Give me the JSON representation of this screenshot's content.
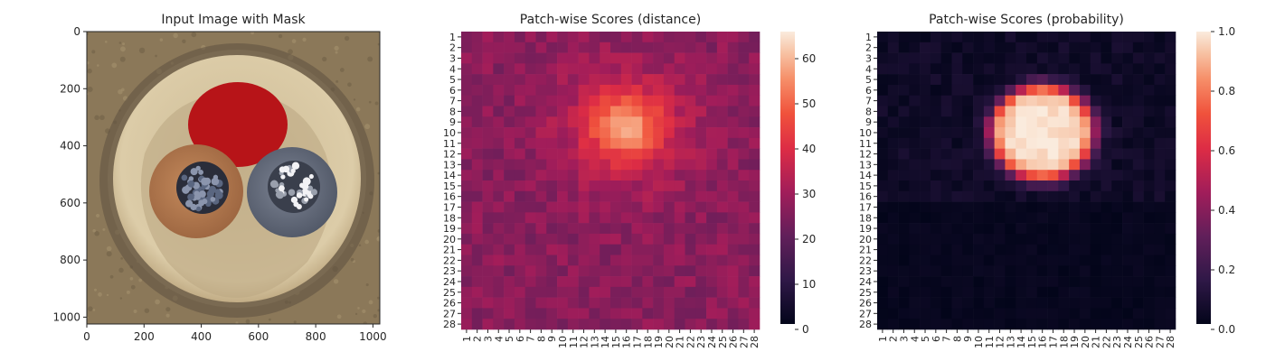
{
  "figure": {
    "panels": [
      {
        "title": "Input Image with Mask"
      },
      {
        "title": "Patch-wise Scores (distance)"
      },
      {
        "title": "Patch-wise Scores (probability)"
      }
    ]
  },
  "chart_data": [
    {
      "type": "image",
      "title": "Input Image with Mask",
      "xlim": [
        0,
        1024
      ],
      "ylim": [
        1024,
        0
      ],
      "x_ticks": [
        "0",
        "200",
        "400",
        "600",
        "800",
        "1000"
      ],
      "y_ticks": [
        "0",
        "200",
        "400",
        "600",
        "800",
        "1000"
      ],
      "colors": {
        "background": "#8d7a5d",
        "outer_rim": "#6f5f49",
        "disc": "#d8c8a3",
        "disc_inner": "#c9b68f",
        "mask": "#b71418",
        "copper": "#b77a4e",
        "steel": "#6c7382"
      }
    },
    {
      "type": "heatmap",
      "title": "Patch-wise Scores (distance)",
      "grid": [
        28,
        28
      ],
      "x_ticks": [
        "1",
        "2",
        "3",
        "4",
        "5",
        "6",
        "7",
        "8",
        "9",
        "10",
        "11",
        "12",
        "13",
        "14",
        "15",
        "16",
        "17",
        "18",
        "19",
        "20",
        "21",
        "22",
        "23",
        "24",
        "25",
        "26",
        "27",
        "28"
      ],
      "y_ticks": [
        "1",
        "2",
        "3",
        "4",
        "5",
        "6",
        "7",
        "8",
        "9",
        "10",
        "11",
        "12",
        "13",
        "14",
        "15",
        "16",
        "17",
        "18",
        "19",
        "20",
        "21",
        "22",
        "23",
        "24",
        "25",
        "26",
        "27",
        "28"
      ],
      "colorbar": {
        "min": 0,
        "max": 66,
        "ticks": [
          "0",
          "10",
          "20",
          "30",
          "40",
          "50",
          "60"
        ],
        "tick_values": [
          0,
          10,
          20,
          30,
          40,
          50,
          60
        ]
      },
      "blob": {
        "center_col": 16,
        "center_row": 9.5,
        "peak": 65,
        "base": 26,
        "halo": 40
      },
      "colormap": "rocket"
    },
    {
      "type": "heatmap",
      "title": "Patch-wise Scores (probability)",
      "grid": [
        28,
        28
      ],
      "x_ticks": [
        "1",
        "2",
        "3",
        "4",
        "5",
        "6",
        "7",
        "8",
        "9",
        "10",
        "11",
        "12",
        "13",
        "14",
        "15",
        "16",
        "17",
        "18",
        "19",
        "20",
        "21",
        "22",
        "23",
        "24",
        "25",
        "26",
        "27",
        "28"
      ],
      "y_ticks": [
        "1",
        "2",
        "3",
        "4",
        "5",
        "6",
        "7",
        "8",
        "9",
        "10",
        "11",
        "12",
        "13",
        "14",
        "15",
        "16",
        "17",
        "18",
        "19",
        "20",
        "21",
        "22",
        "23",
        "24",
        "25",
        "26",
        "27",
        "28"
      ],
      "colorbar": {
        "min": 0,
        "max": 1,
        "ticks": [
          "0.0",
          "0.2",
          "0.4",
          "0.6",
          "0.8",
          "1.0"
        ],
        "tick_values": [
          0,
          0.2,
          0.4,
          0.6,
          0.8,
          1.0
        ]
      },
      "blob": {
        "center_col": 16,
        "center_row": 10,
        "peak": 0.98,
        "base": 0.01
      },
      "colormap": "rocket"
    }
  ]
}
